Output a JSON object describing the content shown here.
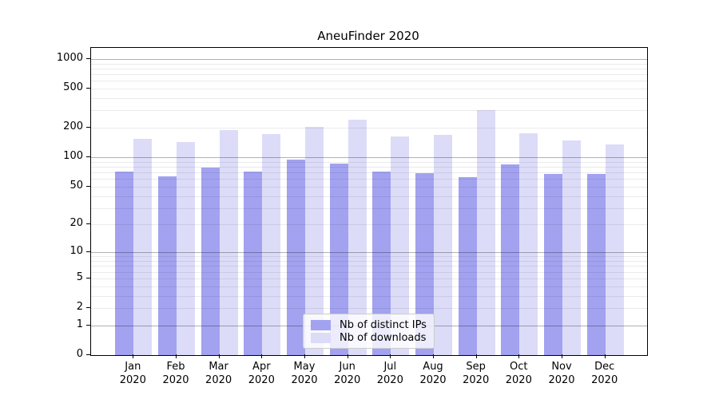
{
  "title": "AneuFinder 2020",
  "colors": {
    "ips_bar": "#a2a2f0",
    "downloads_bar": "#dcdcf8",
    "major_grid": "rgba(0,0,0,0.30)",
    "minor_grid": "rgba(0,0,0,0.08)",
    "spine": "#000000",
    "legend_border": "#cccccc"
  },
  "legend": {
    "position": "lower center",
    "items": [
      {
        "label": "Nb of distinct IPs",
        "series": "ips"
      },
      {
        "label": "Nb of downloads",
        "series": "downloads"
      }
    ]
  },
  "axes": {
    "y_tick_labels": [
      "1000",
      "500",
      "200",
      "100",
      "50",
      "20",
      "10",
      "5",
      "2",
      "1",
      "0"
    ],
    "y_tick_values": [
      1000,
      500,
      200,
      100,
      50,
      20,
      10,
      5,
      2,
      1,
      0
    ],
    "x_tick_labels": [
      [
        "Jan",
        "2020"
      ],
      [
        "Feb",
        "2020"
      ],
      [
        "Mar",
        "2020"
      ],
      [
        "Apr",
        "2020"
      ],
      [
        "May",
        "2020"
      ],
      [
        "Jun",
        "2020"
      ],
      [
        "Jul",
        "2020"
      ],
      [
        "Aug",
        "2020"
      ],
      [
        "Sep",
        "2020"
      ],
      [
        "Oct",
        "2020"
      ],
      [
        "Nov",
        "2020"
      ],
      [
        "Dec",
        "2020"
      ]
    ]
  },
  "chart_data": {
    "type": "bar",
    "title": "AneuFinder 2020",
    "categories": [
      "Jan 2020",
      "Feb 2020",
      "Mar 2020",
      "Apr 2020",
      "May 2020",
      "Jun 2020",
      "Jul 2020",
      "Aug 2020",
      "Sep 2020",
      "Oct 2020",
      "Nov 2020",
      "Dec 2020"
    ],
    "series": [
      {
        "name": "Nb of distinct IPs",
        "values": [
          71,
          64,
          78,
          72,
          94,
          87,
          71,
          69,
          62,
          85,
          68,
          68
        ]
      },
      {
        "name": "Nb of downloads",
        "values": [
          154,
          142,
          188,
          174,
          206,
          241,
          163,
          168,
          300,
          175,
          148,
          135
        ]
      }
    ],
    "xlabel": "",
    "ylabel": "",
    "yscale": "log10(value+1)",
    "ylim": [
      0,
      1230
    ],
    "y_major_gridlines": [
      1,
      10,
      100,
      1000
    ],
    "grid": "both",
    "legend_position": "lower center"
  }
}
